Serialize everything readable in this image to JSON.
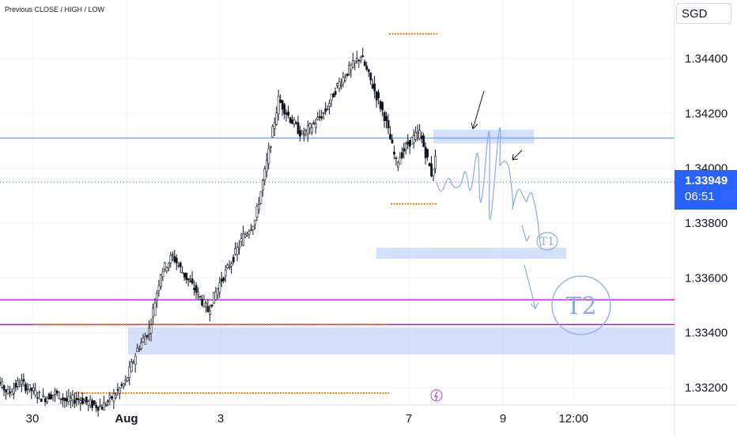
{
  "chart_data": {
    "type": "candlestick",
    "title": "",
    "indicator_label": "Previous CLOSE / HIGH / LOW",
    "currency": "SGD",
    "current_price": "1.33949",
    "countdown": "06:51",
    "ylim": [
      1.3312,
      1.3452
    ],
    "y_ticks": [
      "1.34400",
      "1.34200",
      "1.34000",
      "1.33800",
      "1.33600",
      "1.33400",
      "1.33200"
    ],
    "y_tick_values": [
      1.344,
      1.342,
      1.34,
      1.338,
      1.336,
      1.334,
      1.332
    ],
    "x_ticks": [
      "30",
      "Aug",
      "3",
      "7",
      "9",
      "12:00"
    ],
    "x_tick_dates": [
      "2024-07-30",
      "2024-08-01",
      "2024-08-03",
      "2024-08-07",
      "2024-08-09",
      "2024-08-10 12:00"
    ],
    "grid": true,
    "series": [
      {
        "type": "ohlc-approx-path",
        "color": "#131722",
        "points": [
          [
            "2024-07-29 00:00",
            1.3321
          ],
          [
            "2024-07-29 06:00",
            1.3323
          ],
          [
            "2024-07-29 12:00",
            1.3318
          ],
          [
            "2024-07-29 18:00",
            1.3322
          ],
          [
            "2024-07-30 00:00",
            1.3319
          ],
          [
            "2024-07-30 06:00",
            1.3316
          ],
          [
            "2024-07-30 12:00",
            1.3318
          ],
          [
            "2024-07-30 18:00",
            1.3315
          ],
          [
            "2024-07-31 00:00",
            1.3316
          ],
          [
            "2024-07-31 06:00",
            1.3314
          ],
          [
            "2024-07-31 12:00",
            1.3313
          ],
          [
            "2024-07-31 18:00",
            1.3317
          ],
          [
            "2024-08-01 00:00",
            1.3322
          ],
          [
            "2024-08-01 06:00",
            1.3334
          ],
          [
            "2024-08-01 12:00",
            1.3341
          ],
          [
            "2024-08-01 18:00",
            1.3362
          ],
          [
            "2024-08-02 00:00",
            1.3368
          ],
          [
            "2024-08-02 06:00",
            1.3361
          ],
          [
            "2024-08-02 12:00",
            1.3355
          ],
          [
            "2024-08-02 18:00",
            1.3348
          ],
          [
            "2024-08-03 00:00",
            1.3358
          ],
          [
            "2024-08-03 06:00",
            1.3366
          ],
          [
            "2024-08-03 12:00",
            1.3375
          ],
          [
            "2024-08-03 18:00",
            1.3381
          ],
          [
            "2024-08-04 00:00",
            1.3402
          ],
          [
            "2024-08-04 06:00",
            1.3425
          ],
          [
            "2024-08-04 12:00",
            1.3418
          ],
          [
            "2024-08-04 18:00",
            1.3412
          ],
          [
            "2024-08-05 00:00",
            1.3416
          ],
          [
            "2024-08-05 06:00",
            1.3421
          ],
          [
            "2024-08-05 12:00",
            1.343
          ],
          [
            "2024-08-05 18:00",
            1.3436
          ],
          [
            "2024-08-06 00:00",
            1.3441
          ],
          [
            "2024-08-06 06:00",
            1.343
          ],
          [
            "2024-08-06 12:00",
            1.3419
          ],
          [
            "2024-08-06 18:00",
            1.3402
          ],
          [
            "2024-08-07 00:00",
            1.3409
          ],
          [
            "2024-08-07 06:00",
            1.3413
          ],
          [
            "2024-08-07 12:00",
            1.3398
          ],
          [
            "2024-08-07 18:00",
            1.3414
          ],
          [
            "2024-08-08 00:00",
            1.3426
          ],
          [
            "2024-08-08 06:00",
            1.3436
          ],
          [
            "2024-08-08 12:00",
            1.3428
          ],
          [
            "2024-08-08 18:00",
            1.3394
          ],
          [
            "2024-08-09 00:00",
            1.3378
          ],
          [
            "2024-08-09 06:00",
            1.3372
          ],
          [
            "2024-08-09 12:00",
            1.3389
          ],
          [
            "2024-08-09 18:00",
            1.3402
          ],
          [
            "2024-08-10 00:00",
            1.3387
          ],
          [
            "2024-08-10 06:00",
            1.3398
          ],
          [
            "2024-08-10 12:00",
            1.3405
          ],
          [
            "2024-08-10 18:00",
            1.3418
          ],
          [
            "2024-08-11 00:00",
            1.3421
          ],
          [
            "2024-08-11 06:00",
            1.3407
          ],
          [
            "2024-08-11 12:00",
            1.3395
          ]
        ]
      }
    ],
    "levels": [
      {
        "name": "prev-high-blue",
        "value": 1.3411,
        "color": "#7e9ff0"
      },
      {
        "name": "prev-close-dotted",
        "value": 1.33949,
        "color": "#6a7cc8"
      },
      {
        "name": "magenta-level",
        "value": 1.3352,
        "color": "#d500f9"
      },
      {
        "name": "purple-level",
        "value": 1.3343,
        "color": "#9c27b0"
      }
    ],
    "zones": [
      {
        "name": "resistance-zone",
        "from": 1.3409,
        "to": 1.3414,
        "color": "#b3c8f5"
      },
      {
        "name": "target-t1-zone",
        "from": 1.3369,
        "to": 1.3371,
        "color": "#b3c8f5"
      },
      {
        "name": "demand-zone",
        "from": 1.3332,
        "to": 1.3342,
        "color": "#b3c8f5"
      }
    ],
    "annotations": [
      "T1",
      "T2"
    ],
    "colors": {
      "candle": "#131722",
      "accent": "#2962ff",
      "orange": "#f57c00"
    }
  }
}
